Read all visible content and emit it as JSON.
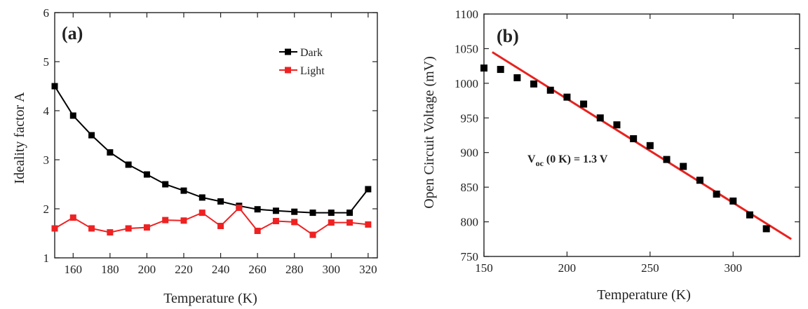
{
  "chart_data": [
    {
      "type": "line",
      "panel_label": "(a)",
      "xlabel": "Temperature (K)",
      "ylabel": "Ideality factor A",
      "xlim": [
        150,
        325
      ],
      "ylim": [
        1,
        6
      ],
      "xticks": [
        160,
        180,
        200,
        220,
        240,
        260,
        280,
        300,
        320
      ],
      "yticks": [
        1,
        2,
        3,
        4,
        5,
        6
      ],
      "grid": false,
      "legend_position": "top-right",
      "series": [
        {
          "name": "Dark",
          "color": "#000000",
          "marker": "square",
          "x": [
            150,
            160,
            170,
            180,
            190,
            200,
            210,
            220,
            230,
            240,
            250,
            260,
            270,
            280,
            290,
            300,
            310,
            320
          ],
          "y": [
            4.5,
            3.9,
            3.5,
            3.15,
            2.9,
            2.7,
            2.5,
            2.37,
            2.23,
            2.15,
            2.06,
            1.99,
            1.96,
            1.94,
            1.92,
            1.92,
            1.92,
            2.4
          ]
        },
        {
          "name": "Light",
          "color": "#ee2222",
          "marker": "square",
          "x": [
            150,
            160,
            170,
            180,
            190,
            200,
            210,
            220,
            230,
            240,
            250,
            260,
            270,
            280,
            290,
            300,
            310,
            320
          ],
          "y": [
            1.6,
            1.82,
            1.6,
            1.52,
            1.6,
            1.62,
            1.77,
            1.76,
            1.92,
            1.65,
            2.02,
            1.55,
            1.75,
            1.73,
            1.47,
            1.72,
            1.72,
            1.68
          ]
        }
      ]
    },
    {
      "type": "scatter",
      "panel_label": "(b)",
      "xlabel": "Temperature (K)",
      "ylabel": "Open Circuit Voltage  (mV)",
      "xlim": [
        150,
        340
      ],
      "ylim": [
        750,
        1100
      ],
      "xticks": [
        150,
        200,
        250,
        300
      ],
      "yticks": [
        750,
        800,
        850,
        900,
        950,
        1000,
        1050,
        1100
      ],
      "grid": false,
      "annotation": {
        "main": "V",
        "sub": "oc",
        "rest": " (0 K) = 1.3 V"
      },
      "series": [
        {
          "name": "",
          "color": "#000000",
          "marker": "square",
          "x": [
            150,
            160,
            170,
            180,
            190,
            200,
            210,
            220,
            230,
            240,
            250,
            260,
            270,
            280,
            290,
            300,
            310,
            320
          ],
          "y": [
            1022,
            1020,
            1008,
            999,
            990,
            980,
            970,
            950,
            940,
            920,
            910,
            890,
            880,
            860,
            840,
            830,
            810,
            790
          ]
        }
      ],
      "fit_line": {
        "color": "#e8221f",
        "x": [
          155,
          335
        ],
        "y": [
          1045,
          775
        ]
      }
    }
  ]
}
